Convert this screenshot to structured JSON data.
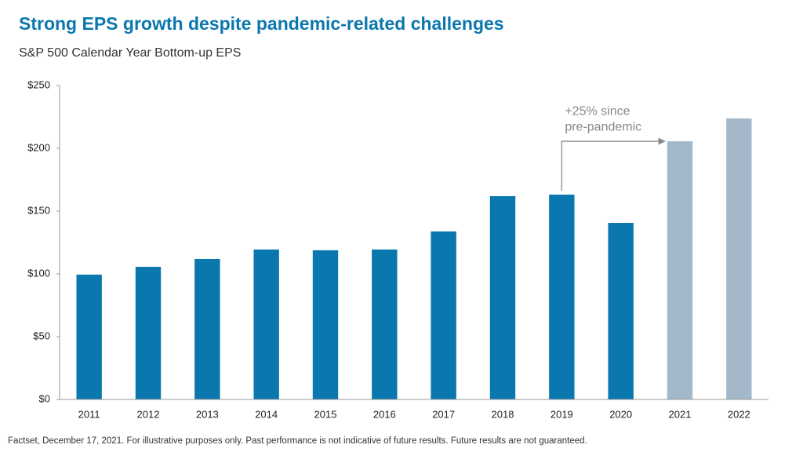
{
  "chart_data": {
    "type": "bar",
    "title": "Strong EPS growth despite pandemic-related challenges",
    "subtitle": "S&P 500 Calendar Year Bottom-up EPS",
    "categories": [
      "2011",
      "2012",
      "2013",
      "2014",
      "2015",
      "2016",
      "2017",
      "2018",
      "2019",
      "2020",
      "2021",
      "2022"
    ],
    "values": [
      99.4,
      105.6,
      111.9,
      119.4,
      118.8,
      119.4,
      133.8,
      161.9,
      163.1,
      140.6,
      205.6,
      223.8
    ],
    "colors": [
      "#0a77ae",
      "#0a77ae",
      "#0a77ae",
      "#0a77ae",
      "#0a77ae",
      "#0a77ae",
      "#0a77ae",
      "#0a77ae",
      "#0a77ae",
      "#0a77ae",
      "#a3b9ca",
      "#a3b9ca"
    ],
    "ylim": [
      0,
      250
    ],
    "yticks": [
      {
        "value": 0,
        "label": "$0"
      },
      {
        "value": 50,
        "label": "$50"
      },
      {
        "value": 100,
        "label": "$100"
      },
      {
        "value": 150,
        "label": "$150"
      },
      {
        "value": 200,
        "label": "$200"
      },
      {
        "value": 250,
        "label": "$250"
      }
    ],
    "grid": false,
    "annotation": [
      "+25% since",
      "pre-pandemic"
    ],
    "source": "Factset, December 17, 2021. For illustrative purposes only. Past performance is not indicative of future results. Future results are not guaranteed."
  }
}
